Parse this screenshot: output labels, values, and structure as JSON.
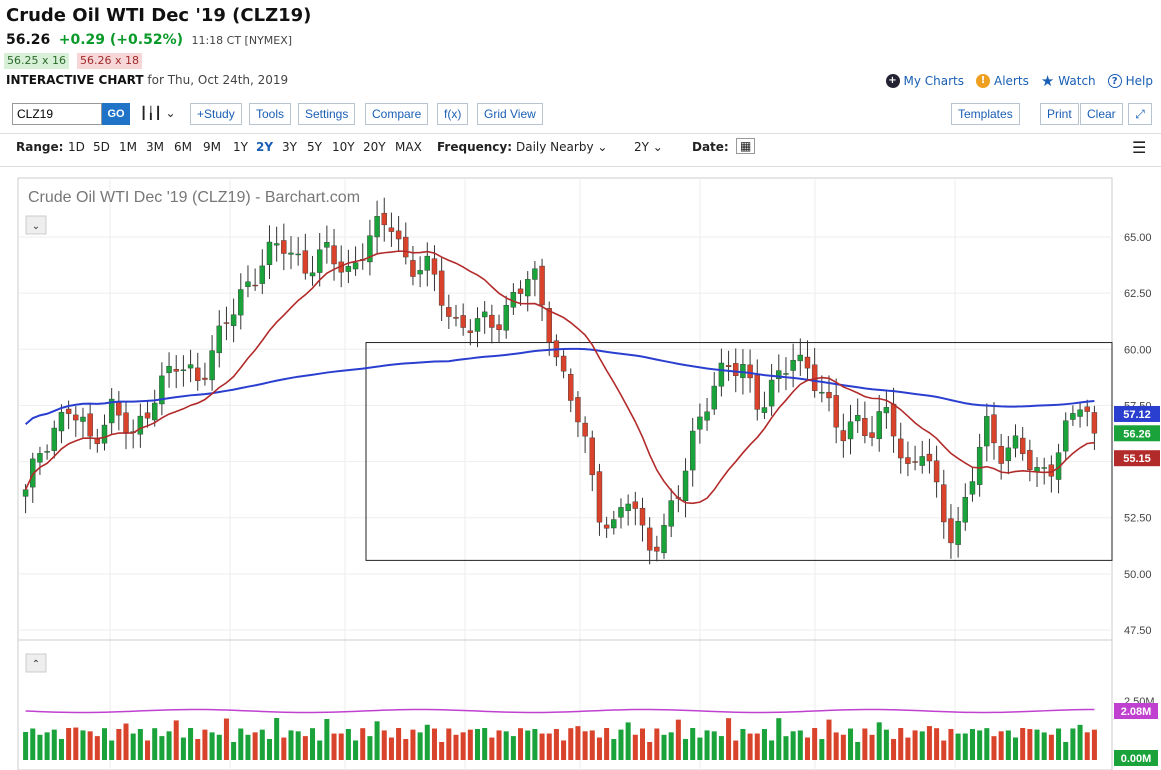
{
  "header": {
    "title": "Crude Oil WTI Dec '19 (CLZ19)",
    "last": "56.26",
    "change": "+0.29 (+0.52%)",
    "time": "11:18 CT [NYMEX]",
    "bid": "56.25 x 16",
    "ask": "56.26 x 18",
    "chart_label": "INTERACTIVE CHART",
    "chart_date": "for Thu, Oct 24th, 2019"
  },
  "links": {
    "my_charts": "My Charts",
    "alerts": "Alerts",
    "watch": "Watch",
    "help": "Help"
  },
  "toolbar": {
    "symbol": "CLZ19",
    "go": "GO",
    "study": "+Study",
    "tools": "Tools",
    "settings": "Settings",
    "compare": "Compare",
    "fx": "f(x)",
    "grid_view": "Grid View",
    "templates": "Templates",
    "print": "Print",
    "clear": "Clear"
  },
  "range": {
    "label": "Range:",
    "options": [
      "1D",
      "5D",
      "1M",
      "3M",
      "6M",
      "9M",
      "1Y",
      "2Y",
      "3Y",
      "5Y",
      "10Y",
      "20Y",
      "MAX"
    ],
    "active": "2Y",
    "frequency_label": "Frequency:",
    "frequency": "Daily Nearby",
    "period": "2Y",
    "date_label": "Date:"
  },
  "colors": {
    "up": "#1aa33a",
    "down": "#d9432b",
    "ma_short": "#b22a2a",
    "ma_long": "#2a3fd0",
    "vol_avg": "#c040d0"
  },
  "chart_data": {
    "type": "candlestick",
    "title": "Crude Oil WTI Dec '19 (CLZ19) - Barchart.com",
    "y_ticks": [
      "65.00",
      "62.50",
      "60.00",
      "57.50",
      "55.00",
      "52.50",
      "50.00",
      "47.50"
    ],
    "ylim": [
      47.5,
      65.5
    ],
    "price_labels": {
      "ma_long": "57.12",
      "last": "56.26",
      "ma_short": "55.15"
    },
    "volume_ticks": [
      "2.50M"
    ],
    "volume_labels": {
      "avg": "2.08M",
      "zero": "0.00M"
    },
    "range_box": {
      "high": 60.3,
      "low": 50.6
    }
  }
}
